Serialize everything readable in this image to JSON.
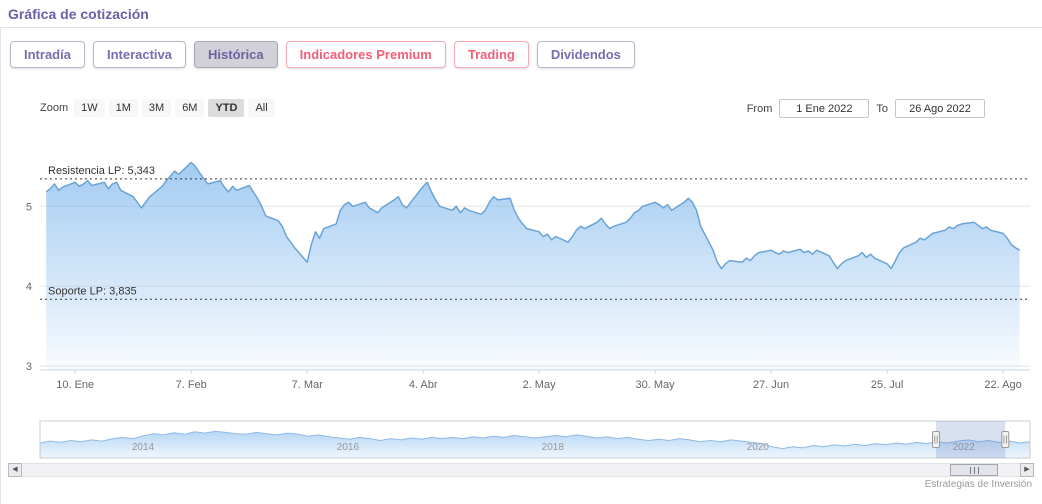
{
  "page": {
    "title": "Gráfica de cotización",
    "credit": "Estrategias de Inversión"
  },
  "tabs": [
    {
      "label": "Intradía",
      "style": "purple",
      "active": false
    },
    {
      "label": "Interactiva",
      "style": "purple",
      "active": false
    },
    {
      "label": "Histórica",
      "style": "purple",
      "active": true
    },
    {
      "label": "Indicadores Premium",
      "style": "pink",
      "active": false
    },
    {
      "label": "Trading",
      "style": "pink",
      "active": false
    },
    {
      "label": "Dividendos",
      "style": "purple",
      "active": false
    }
  ],
  "range_selector": {
    "zoom_label": "Zoom",
    "zoom_options": [
      "1W",
      "1M",
      "3M",
      "6M",
      "YTD",
      "All"
    ],
    "zoom_selected": "YTD",
    "from_label": "From",
    "from_value": "1 Ene 2022",
    "to_label": "To",
    "to_value": "26 Ago 2022"
  },
  "chart_data": {
    "type": "area",
    "title": "",
    "xlabel": "",
    "ylabel": "",
    "x_unit": "day_of_year_2022",
    "xlim": [
      1.5,
      240.5
    ],
    "ylim": [
      2.95,
      5.83
    ],
    "yticks": [
      3,
      4,
      5
    ],
    "xticks": [
      "10. Ene",
      "7. Feb",
      "7. Mar",
      "4. Abr",
      "2. May",
      "30. May",
      "27. Jun",
      "25. Jul",
      "22. Ago"
    ],
    "xtick_days": [
      10,
      38,
      66,
      94,
      122,
      150,
      178,
      206,
      234
    ],
    "grid": "horizontal-only",
    "legend": "none",
    "annotations": [
      {
        "label": "Resistencia LP: 5,343",
        "value": 5.343
      },
      {
        "label": "Soporte LP: 3,835",
        "value": 3.835
      }
    ],
    "colors": {
      "line": "#6ba3d6",
      "fill": "#7cb5ec",
      "annotation_line": "#333333",
      "grid": "#e6e6e6",
      "accent_purple": "#6b5fa5",
      "accent_pink": "#f25f77"
    },
    "series": [
      {
        "name": "Cotización",
        "x": [
          3,
          4,
          5,
          6,
          7,
          10,
          11,
          12,
          13,
          14,
          17,
          18,
          19,
          20,
          21,
          24,
          25,
          26,
          27,
          28,
          31,
          32,
          33,
          34,
          35,
          38,
          39,
          40,
          41,
          42,
          45,
          46,
          47,
          48,
          49,
          52,
          53,
          54,
          55,
          56,
          59,
          60,
          61,
          62,
          63,
          66,
          67,
          68,
          69,
          70,
          73,
          74,
          75,
          76,
          77,
          80,
          81,
          82,
          83,
          84,
          87,
          88,
          89,
          90,
          91,
          94,
          95,
          96,
          97,
          98,
          101,
          102,
          103,
          104,
          105,
          108,
          109,
          110,
          111,
          112,
          115,
          116,
          117,
          118,
          119,
          122,
          123,
          124,
          125,
          126,
          129,
          130,
          131,
          132,
          133,
          136,
          137,
          138,
          139,
          140,
          143,
          144,
          145,
          146,
          147,
          150,
          151,
          152,
          153,
          154,
          157,
          158,
          159,
          160,
          161,
          164,
          165,
          166,
          167,
          168,
          171,
          172,
          173,
          174,
          175,
          178,
          179,
          180,
          181,
          182,
          185,
          186,
          187,
          188,
          189,
          192,
          193,
          194,
          195,
          196,
          199,
          200,
          201,
          202,
          203,
          206,
          207,
          208,
          209,
          210,
          213,
          214,
          215,
          216,
          217,
          220,
          221,
          222,
          223,
          224,
          227,
          228,
          229,
          230,
          231,
          234,
          235,
          236,
          237,
          238
        ],
        "values": [
          5.18,
          5.22,
          5.28,
          5.2,
          5.24,
          5.3,
          5.25,
          5.28,
          5.32,
          5.26,
          5.3,
          5.22,
          5.28,
          5.3,
          5.2,
          5.12,
          5.05,
          4.98,
          5.05,
          5.12,
          5.25,
          5.32,
          5.38,
          5.44,
          5.4,
          5.55,
          5.5,
          5.42,
          5.35,
          5.28,
          5.32,
          5.24,
          5.18,
          5.25,
          5.2,
          5.26,
          5.18,
          5.1,
          5.0,
          4.88,
          4.82,
          4.75,
          4.62,
          4.55,
          4.48,
          4.3,
          4.52,
          4.68,
          4.6,
          4.72,
          4.78,
          4.95,
          5.02,
          5.05,
          5.0,
          5.05,
          4.98,
          4.95,
          4.92,
          4.98,
          5.08,
          5.12,
          5.02,
          4.98,
          5.05,
          5.25,
          5.3,
          5.18,
          5.08,
          5.0,
          4.95,
          5.0,
          4.92,
          4.98,
          4.95,
          4.9,
          4.95,
          5.05,
          5.12,
          5.08,
          5.1,
          4.95,
          4.85,
          4.78,
          4.72,
          4.68,
          4.62,
          4.65,
          4.58,
          4.62,
          4.55,
          4.62,
          4.7,
          4.75,
          4.72,
          4.8,
          4.85,
          4.78,
          4.72,
          4.75,
          4.8,
          4.85,
          4.92,
          4.95,
          5.0,
          5.05,
          5.02,
          4.98,
          5.02,
          4.95,
          5.05,
          5.1,
          5.05,
          4.95,
          4.75,
          4.45,
          4.3,
          4.22,
          4.28,
          4.32,
          4.3,
          4.35,
          4.32,
          4.38,
          4.42,
          4.45,
          4.42,
          4.4,
          4.44,
          4.42,
          4.46,
          4.42,
          4.44,
          4.4,
          4.45,
          4.38,
          4.3,
          4.22,
          4.28,
          4.32,
          4.38,
          4.42,
          4.36,
          4.4,
          4.35,
          4.28,
          4.22,
          4.32,
          4.42,
          4.48,
          4.55,
          4.6,
          4.58,
          4.62,
          4.66,
          4.7,
          4.74,
          4.72,
          4.76,
          4.78,
          4.8,
          4.76,
          4.72,
          4.74,
          4.7,
          4.66,
          4.6,
          4.52,
          4.48,
          4.45
        ]
      }
    ],
    "navigator": {
      "years": [
        "2014",
        "2016",
        "2018",
        "2020",
        "2022"
      ],
      "year_fracs": [
        0.104,
        0.311,
        0.518,
        0.725,
        0.933
      ],
      "selection": {
        "from": 0.905,
        "to": 0.975
      },
      "values": [
        0.42,
        0.48,
        0.44,
        0.5,
        0.46,
        0.52,
        0.48,
        0.55,
        0.6,
        0.56,
        0.65,
        0.72,
        0.68,
        0.75,
        0.7,
        0.78,
        0.74,
        0.8,
        0.76,
        0.72,
        0.7,
        0.76,
        0.72,
        0.68,
        0.74,
        0.7,
        0.64,
        0.68,
        0.62,
        0.58,
        0.54,
        0.6,
        0.56,
        0.5,
        0.56,
        0.52,
        0.58,
        0.54,
        0.6,
        0.56,
        0.6,
        0.56,
        0.62,
        0.58,
        0.64,
        0.6,
        0.66,
        0.62,
        0.58,
        0.62,
        0.66,
        0.62,
        0.68,
        0.64,
        0.58,
        0.62,
        0.56,
        0.6,
        0.54,
        0.5,
        0.54,
        0.5,
        0.56,
        0.52,
        0.46,
        0.5,
        0.46,
        0.52,
        0.48,
        0.44,
        0.4,
        0.3,
        0.24,
        0.3,
        0.26,
        0.34,
        0.3,
        0.36,
        0.32,
        0.38,
        0.34,
        0.4,
        0.36,
        0.42,
        0.38,
        0.44,
        0.4,
        0.46,
        0.42,
        0.48,
        0.52,
        0.46,
        0.5,
        0.44,
        0.48,
        0.42,
        0.46
      ]
    }
  },
  "scrollbar": {
    "thumb_from": 0.93,
    "thumb_to": 0.978
  }
}
